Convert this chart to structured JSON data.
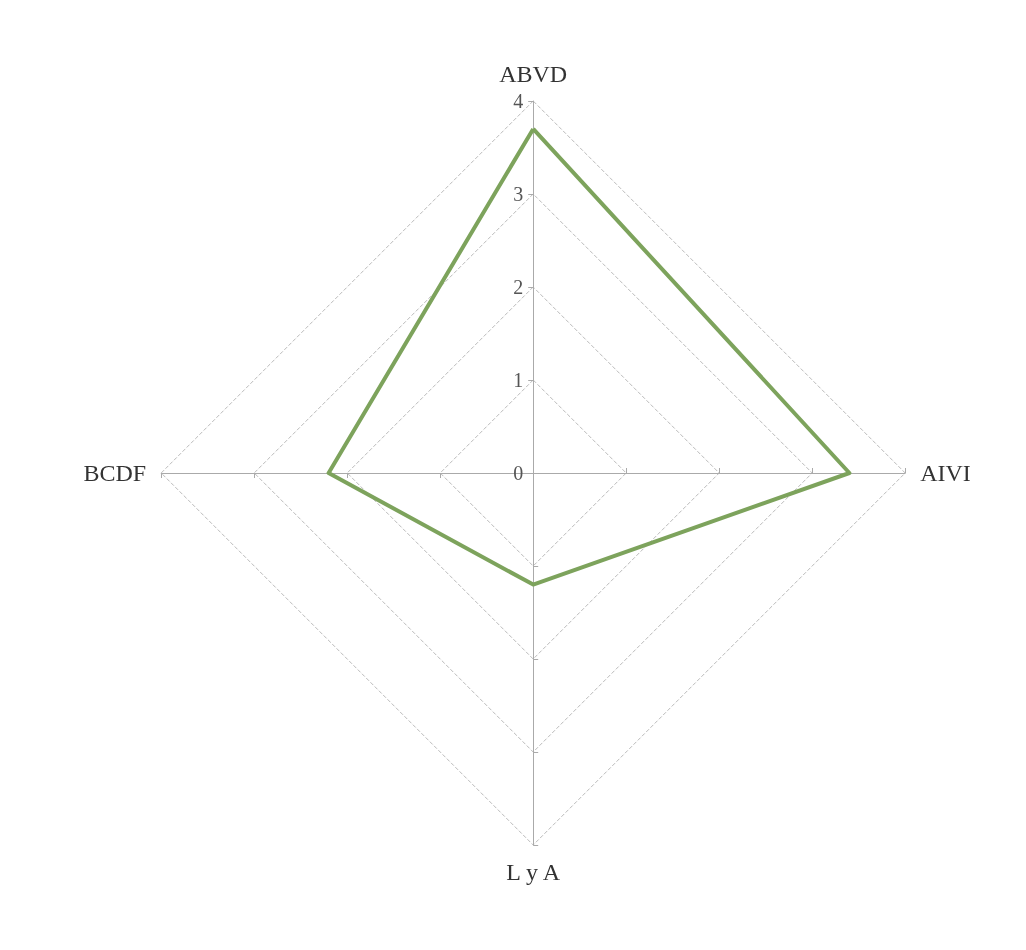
{
  "chart_data": {
    "type": "radar",
    "categories": [
      "ABVD",
      "AIVI",
      "L y A",
      "BCDF"
    ],
    "series": [
      {
        "color": "#7da35c",
        "values": [
          3.7,
          3.4,
          1.2,
          2.2
        ]
      }
    ],
    "ylim": [
      0,
      4
    ],
    "yticks": [
      0,
      1,
      2,
      3,
      4
    ],
    "grid": true,
    "marker": "none",
    "line_style": "solid"
  }
}
